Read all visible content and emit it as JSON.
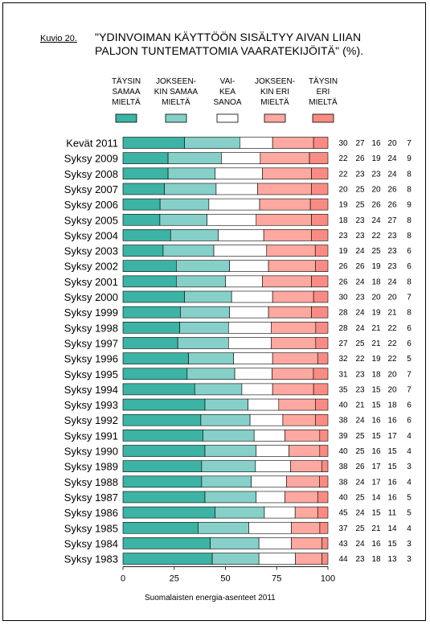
{
  "figure_label": "Kuvio 20.",
  "title_lines": [
    "\"YDINVOIMAN KÄYTTÖÖN SISÄLTYY AIVAN LIIAN",
    "PALJON TUNTEMATTOMIA VAARATEKIJÖITÄ\" (%)."
  ],
  "source_note": "Suomalaisten energia-asenteet 2011",
  "colors": {
    "täysin_samaa": "#3cb3a4",
    "jokseenkin_samaa": "#86d0c9",
    "vaikea_sanoa": "#ffffff",
    "jokseenkin_eri": "#fda8a0",
    "täysin_eri": "#f88c84"
  },
  "chart_data": {
    "type": "bar",
    "orientation": "horizontal",
    "stacked": true,
    "percent_scale": true,
    "xlim": [
      0,
      100
    ],
    "x_ticks": [
      "0",
      "25",
      "50",
      "75",
      "100"
    ],
    "legend_placement": "top",
    "categories": [
      "Kevät 2011",
      "Syksy 2009",
      "Syksy 2008",
      "Syksy 2007",
      "Syksy 2006",
      "Syksy 2005",
      "Syksy 2004",
      "Syksy 2003",
      "Syksy 2002",
      "Syksy 2001",
      "Syksy 2000",
      "Syksy 1999",
      "Syksy 1998",
      "Syksy 1997",
      "Syksy 1996",
      "Syksy 1995",
      "Syksy 1994",
      "Syksy 1993",
      "Syksy 1992",
      "Syksy 1991",
      "Syksy 1990",
      "Syksy 1989",
      "Syksy 1988",
      "Syksy 1987",
      "Syksy 1986",
      "Syksy 1985",
      "Syksy 1984",
      "Syksy 1983"
    ],
    "series": [
      {
        "name": "TÄYSIN SAMAA MIELTÄ",
        "legend_lines": [
          "TÄYSIN",
          "SAMAA",
          "MIELTÄ"
        ],
        "color_key": "täysin_samaa",
        "values": [
          30,
          22,
          22,
          20,
          19,
          18,
          23,
          19,
          26,
          26,
          30,
          28,
          28,
          27,
          32,
          31,
          35,
          40,
          38,
          39,
          40,
          38,
          38,
          40,
          45,
          37,
          43,
          44
        ]
      },
      {
        "name": "JOKSEENKIN SAMAA MIELTÄ",
        "legend_lines": [
          "JOKSEEN-",
          "KIN SAMAA",
          "MIELTÄ"
        ],
        "color_key": "jokseenkin_samaa",
        "values": [
          27,
          26,
          23,
          25,
          25,
          23,
          23,
          24,
          26,
          24,
          23,
          24,
          24,
          25,
          22,
          23,
          23,
          21,
          24,
          25,
          25,
          26,
          24,
          25,
          24,
          25,
          24,
          23
        ]
      },
      {
        "name": "VAIKEA SANOA",
        "legend_lines": [
          "VAI-",
          "KEA",
          "SANOA"
        ],
        "color_key": "vaikea_sanoa",
        "values": [
          16,
          19,
          23,
          20,
          26,
          24,
          22,
          25,
          19,
          18,
          20,
          19,
          21,
          21,
          19,
          18,
          15,
          15,
          16,
          15,
          16,
          17,
          17,
          14,
          15,
          21,
          16,
          18
        ]
      },
      {
        "name": "JOKSEENKIN ERI MIELTÄ",
        "legend_lines": [
          "JOKSEEN-",
          "KIN ERI",
          "MIELTÄ"
        ],
        "color_key": "jokseenkin_eri",
        "values": [
          20,
          24,
          24,
          26,
          26,
          27,
          23,
          23,
          23,
          24,
          20,
          21,
          22,
          22,
          22,
          20,
          20,
          18,
          16,
          17,
          15,
          15,
          16,
          16,
          11,
          14,
          15,
          13
        ]
      },
      {
        "name": "TÄYSIN ERI MIELTÄ",
        "legend_lines": [
          "TÄYSIN",
          "ERI",
          "MIELTÄ"
        ],
        "color_key": "täysin_eri",
        "values": [
          7,
          9,
          8,
          8,
          9,
          8,
          8,
          6,
          6,
          8,
          7,
          8,
          6,
          6,
          5,
          7,
          7,
          6,
          6,
          4,
          4,
          3,
          4,
          5,
          5,
          4,
          3,
          3
        ]
      }
    ]
  }
}
